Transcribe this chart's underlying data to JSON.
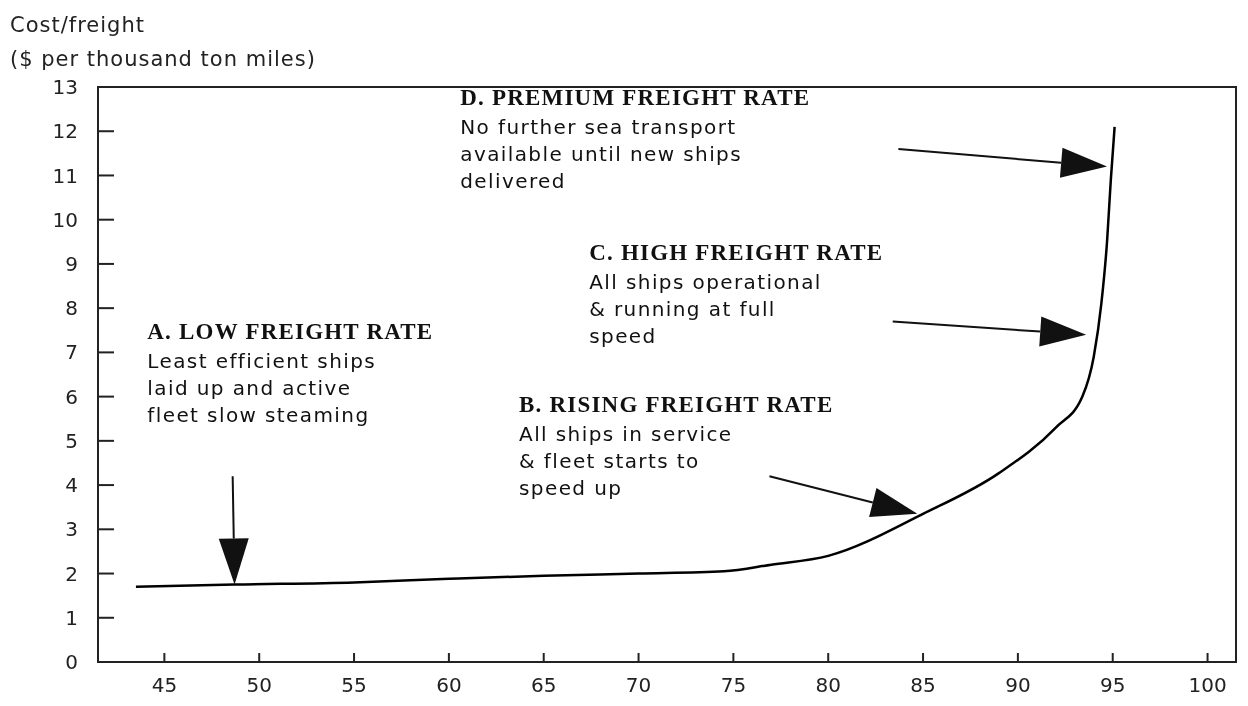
{
  "chart_data": {
    "type": "line",
    "ylabel": "Cost/freight\n($ per thousand ton miles)",
    "x": [
      43.5,
      48.7,
      55,
      60,
      65,
      70,
      74.5,
      77,
      80,
      85,
      89,
      92,
      93.4,
      94,
      94.4,
      94.7,
      94.9,
      95.1
    ],
    "values": [
      1.7,
      1.75,
      1.8,
      1.88,
      1.95,
      2.0,
      2.05,
      2.2,
      2.4,
      3.35,
      4.27,
      5.3,
      6.0,
      6.9,
      8.1,
      9.5,
      10.9,
      12.1
    ],
    "color": "#000000",
    "marker": "none",
    "line_style": "solid",
    "xlim": [
      41.5,
      101.5
    ],
    "xticks": [
      45,
      50,
      55,
      60,
      65,
      70,
      75,
      80,
      85,
      90,
      95,
      100
    ],
    "ylim": [
      0,
      13
    ],
    "yticks": [
      0,
      1,
      2,
      3,
      4,
      5,
      6,
      7,
      8,
      9,
      10,
      11,
      12,
      13
    ],
    "annotations": [
      "A. LOW FREIGHT RATE\nLeast efficient ships\nlaid up and active\nfleet slow steaming",
      "B. RISING FREIGHT RATE\nAll ships in service\n& fleet starts to\nspeed up",
      "C. HIGH FREIGHT RATE\nAll ships operational\n& running at full\nspeed",
      "D. PREMIUM FREIGHT RATE\nNo further sea transport\navailable until new ships\ndelivered"
    ]
  }
}
